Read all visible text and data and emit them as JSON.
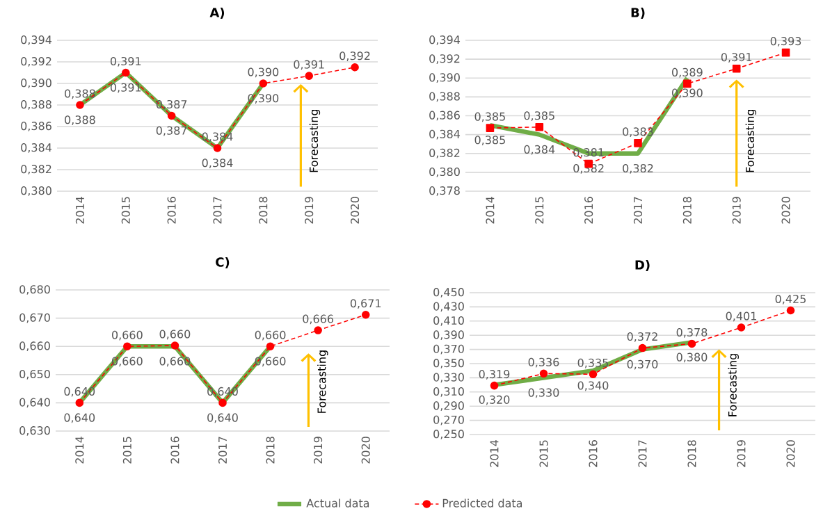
{
  "chart_data": [
    {
      "type": "line",
      "title": "A)",
      "categories": [
        "2014",
        "2015",
        "2016",
        "2017",
        "2018",
        "2019",
        "2020"
      ],
      "ylim": [
        0.38,
        0.394
      ],
      "yticks": [
        {
          "value": 0.38,
          "label": "0,380"
        },
        {
          "value": 0.382,
          "label": "0,382"
        },
        {
          "value": 0.384,
          "label": "0,384"
        },
        {
          "value": 0.386,
          "label": "0,386"
        },
        {
          "value": 0.388,
          "label": "0,388"
        },
        {
          "value": 0.39,
          "label": "0,390"
        },
        {
          "value": 0.392,
          "label": "0,392"
        },
        {
          "value": 0.394,
          "label": "0,394"
        }
      ],
      "grid": "y",
      "annotations": [
        "Forecasting"
      ],
      "series": [
        {
          "color": "#70ad47",
          "marker": "none",
          "line_style": "solid",
          "values": [
            0.388,
            0.391,
            0.387,
            0.384,
            0.39,
            null,
            null
          ],
          "value_labels": [
            "0,388",
            "0,391",
            "0,387",
            "0,384",
            "0,390",
            null,
            null
          ]
        },
        {
          "color": "#ff0000",
          "marker": "circle",
          "line_style": "dashed",
          "values": [
            0.388,
            0.391,
            0.387,
            0.384,
            0.39,
            0.3907,
            0.3915
          ],
          "value_labels": [
            "0,388",
            "0,391",
            "0,387",
            "0,384",
            "0,390",
            "0,391",
            "0,392"
          ]
        }
      ]
    },
    {
      "type": "line",
      "title": "B)",
      "categories": [
        "2014",
        "2015",
        "2016",
        "2017",
        "2018",
        "2019",
        "2020"
      ],
      "ylim": [
        0.378,
        0.394
      ],
      "yticks": [
        {
          "value": 0.378,
          "label": "0,378"
        },
        {
          "value": 0.38,
          "label": "0,380"
        },
        {
          "value": 0.382,
          "label": "0,382"
        },
        {
          "value": 0.384,
          "label": "0,384"
        },
        {
          "value": 0.386,
          "label": "0,386"
        },
        {
          "value": 0.388,
          "label": "0,388"
        },
        {
          "value": 0.39,
          "label": "0,390"
        },
        {
          "value": 0.392,
          "label": "0,392"
        },
        {
          "value": 0.394,
          "label": "0,394"
        }
      ],
      "grid": "y",
      "annotations": [
        "Forecasting"
      ],
      "series": [
        {
          "color": "#70ad47",
          "marker": "none",
          "line_style": "solid",
          "values": [
            0.385,
            0.384,
            0.382,
            0.382,
            0.39,
            null,
            null
          ],
          "value_labels": [
            "0,385",
            "0,384",
            "0,382",
            "0,382",
            "0,390",
            null,
            null
          ]
        },
        {
          "color": "#ff0000",
          "marker": "square",
          "line_style": "dashed",
          "values": [
            0.3847,
            0.3848,
            0.3809,
            0.3831,
            0.3894,
            0.391,
            0.3927
          ],
          "value_labels": [
            "0,385",
            "0,385",
            "0,381",
            "0,383",
            "0,389",
            "0,391",
            "0,393"
          ]
        }
      ]
    },
    {
      "type": "line",
      "title": "C)",
      "categories": [
        "2014",
        "2015",
        "2016",
        "2017",
        "2018",
        "2019",
        "2020"
      ],
      "ylim": [
        0.63,
        0.68
      ],
      "yticks": [
        {
          "value": 0.63,
          "label": "0,630"
        },
        {
          "value": 0.64,
          "label": "0,640"
        },
        {
          "value": 0.65,
          "label": "0,650"
        },
        {
          "value": 0.66,
          "label": "0,660"
        },
        {
          "value": 0.67,
          "label": "0,670"
        },
        {
          "value": 0.68,
          "label": "0,680"
        }
      ],
      "grid": "y",
      "annotations": [
        "Forecasting"
      ],
      "series": [
        {
          "color": "#70ad47",
          "marker": "none",
          "line_style": "solid",
          "values": [
            0.64,
            0.66,
            0.66,
            0.64,
            0.66,
            null,
            null
          ],
          "value_labels": [
            "0,640",
            "0,660",
            "0,660",
            "0,640",
            "0,660",
            null,
            null
          ]
        },
        {
          "color": "#ff0000",
          "marker": "circle",
          "line_style": "dashed",
          "values": [
            0.64,
            0.66,
            0.6603,
            0.64,
            0.66,
            0.6657,
            0.6712
          ],
          "value_labels": [
            "0,640",
            "0,660",
            "0,660",
            "0,640",
            "0,660",
            "0,666",
            "0,671"
          ]
        }
      ]
    },
    {
      "type": "line",
      "title": "D)",
      "categories": [
        "2014",
        "2015",
        "2016",
        "2017",
        "2018",
        "2019",
        "2020"
      ],
      "ylim": [
        0.25,
        0.45
      ],
      "yticks": [
        {
          "value": 0.25,
          "label": "0,250"
        },
        {
          "value": 0.27,
          "label": "0,270"
        },
        {
          "value": 0.29,
          "label": "0,290"
        },
        {
          "value": 0.31,
          "label": "0,310"
        },
        {
          "value": 0.33,
          "label": "0,330"
        },
        {
          "value": 0.35,
          "label": "0,350"
        },
        {
          "value": 0.37,
          "label": "0,370"
        },
        {
          "value": 0.39,
          "label": "0,390"
        },
        {
          "value": 0.41,
          "label": "0,410"
        },
        {
          "value": 0.43,
          "label": "0,430"
        },
        {
          "value": 0.45,
          "label": "0,450"
        }
      ],
      "grid": "y",
      "annotations": [
        "Forecasting"
      ],
      "legend": "bottom",
      "series": [
        {
          "name": "Actual data",
          "color": "#70ad47",
          "marker": "none",
          "line_style": "solid",
          "values": [
            0.32,
            0.33,
            0.34,
            0.37,
            0.38,
            null,
            null
          ],
          "value_labels": [
            "0,320",
            "0,330",
            "0,340",
            "0,370",
            "0,380",
            null,
            null
          ]
        },
        {
          "name": "Predicted data",
          "color": "#ff0000",
          "marker": "circle",
          "line_style": "dashed",
          "values": [
            0.319,
            0.336,
            0.335,
            0.372,
            0.378,
            0.401,
            0.425
          ],
          "value_labels": [
            "0,319",
            "0,336",
            "0,335",
            "0,372",
            "0,378",
            "0,401",
            "0,425"
          ]
        }
      ]
    }
  ]
}
